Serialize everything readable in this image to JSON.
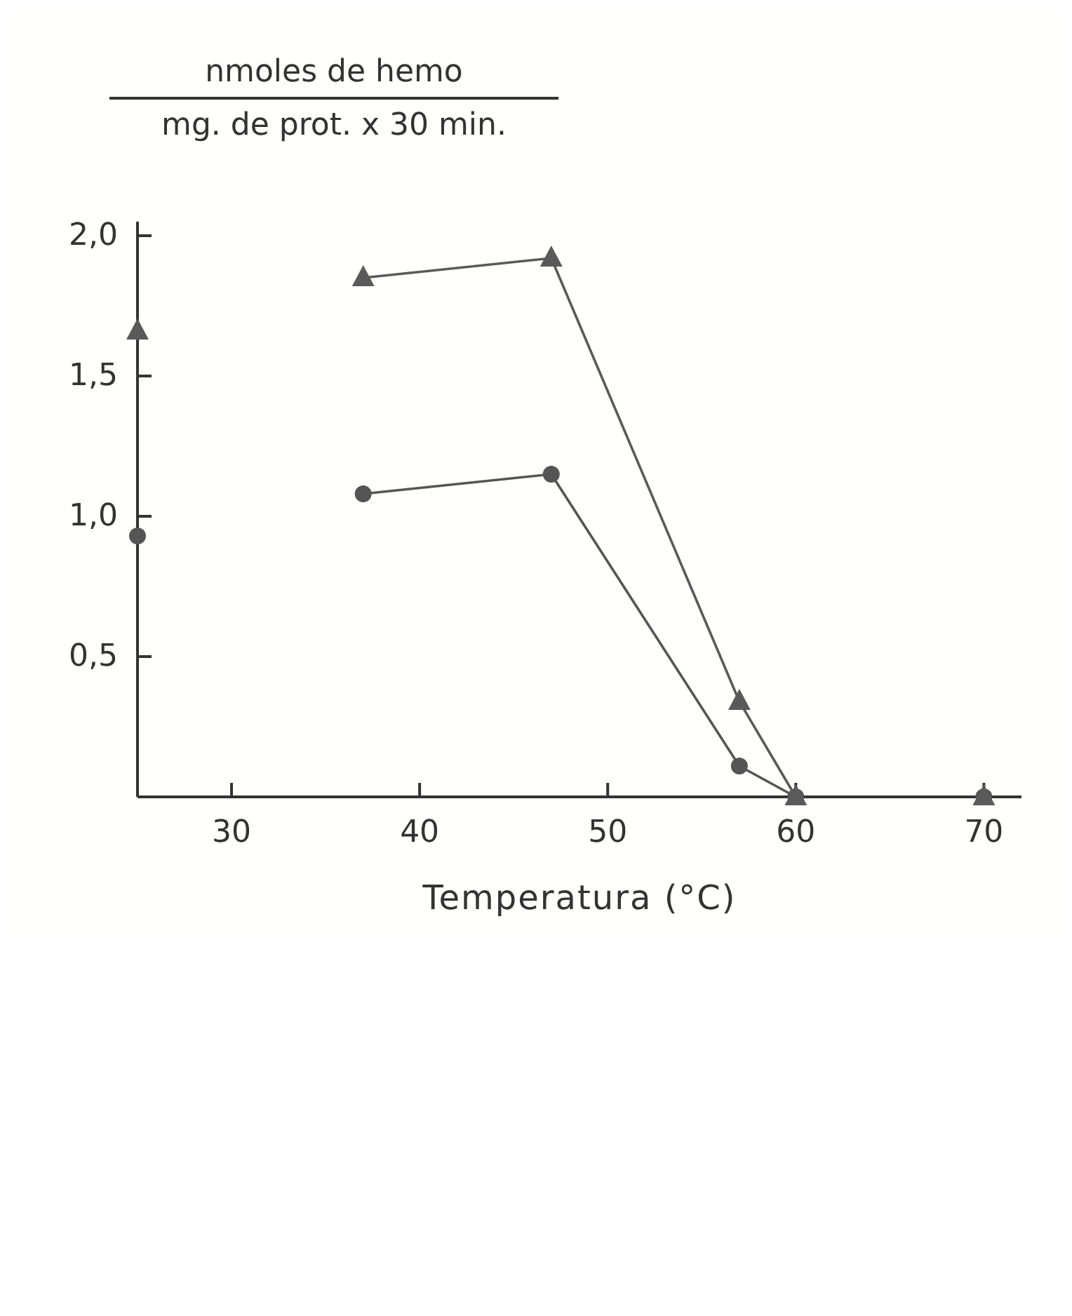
{
  "chart_data": {
    "type": "line",
    "xlabel": "Temperatura (°C)",
    "ylabel": "nmoles de hemo\nmg. de prot. x 30 min.",
    "xlim": [
      25,
      72
    ],
    "xticks": [
      30,
      40,
      50,
      60,
      70
    ],
    "ylim": [
      0,
      2.05
    ],
    "yticks": [
      {
        "value": 0.5,
        "label": "0,5"
      },
      {
        "value": 1,
        "label": "1,0"
      },
      {
        "value": 1.5,
        "label": "1,5"
      },
      {
        "value": 2,
        "label": "2,0"
      }
    ],
    "grid": false,
    "series": [
      {
        "marker": "circle",
        "color": "#555555",
        "x": [
          37,
          47,
          57,
          60
        ],
        "values": [
          1.08,
          1.15,
          0.11,
          0
        ]
      },
      {
        "type": "scatter",
        "marker": "circle",
        "color": "#555555",
        "x": [
          25,
          70
        ],
        "values": [
          0.93,
          0
        ]
      },
      {
        "marker": "triangle",
        "color": "#5a5a5a",
        "x": [
          37,
          47,
          57,
          60
        ],
        "values": [
          1.85,
          1.92,
          0.34,
          0
        ]
      },
      {
        "type": "scatter",
        "marker": "triangle",
        "color": "#5a5a5a",
        "x": [
          25,
          70
        ],
        "values": [
          1.66,
          0
        ]
      }
    ]
  }
}
